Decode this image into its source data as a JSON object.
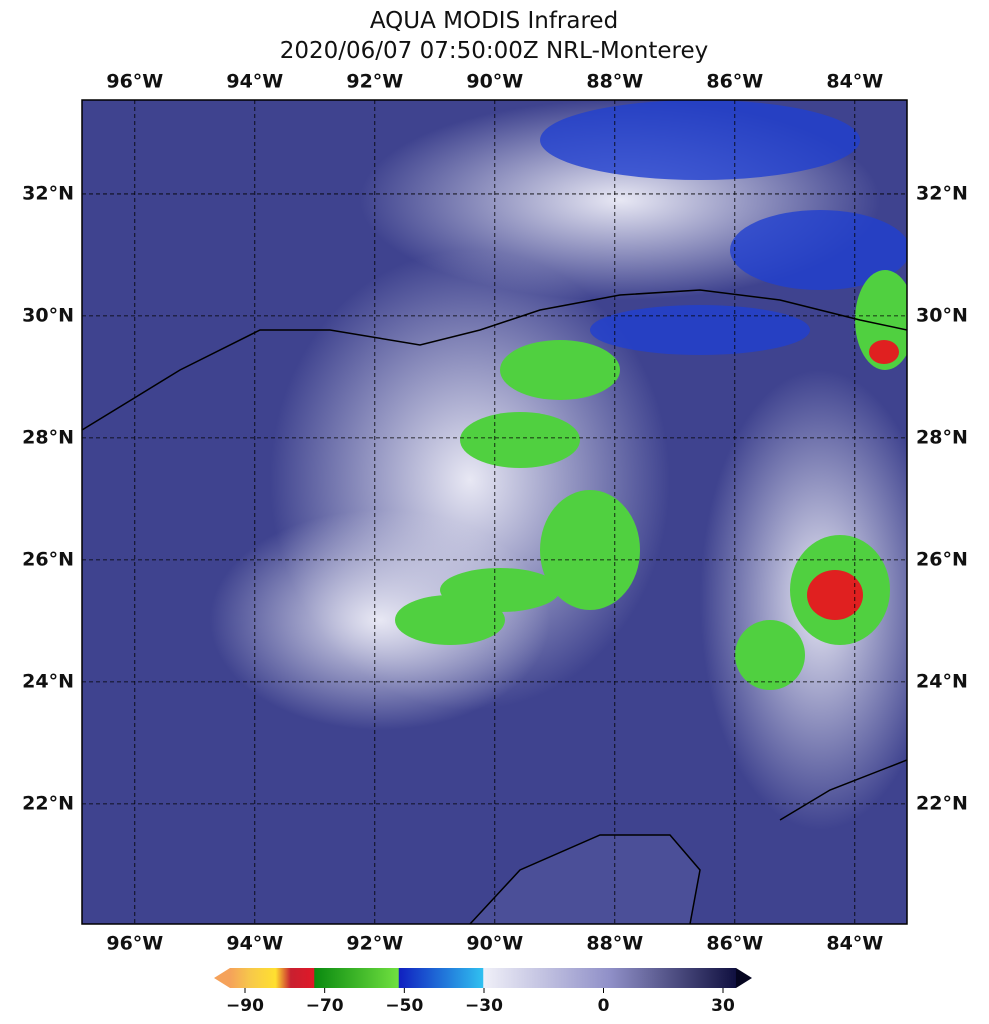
{
  "title": [
    "AQUA MODIS Infrared",
    "2020/06/07 07:50:00Z NRL-Monterey"
  ],
  "map": {
    "xlim": [
      -96.88,
      -83.13
    ],
    "ylim": [
      20.03,
      33.54
    ],
    "grid": true,
    "xticks": [
      {
        "value": -96,
        "label": "96°W"
      },
      {
        "value": -94,
        "label": "94°W"
      },
      {
        "value": -92,
        "label": "92°W"
      },
      {
        "value": -90,
        "label": "90°W"
      },
      {
        "value": -88,
        "label": "88°W"
      },
      {
        "value": -86,
        "label": "86°W"
      },
      {
        "value": -84,
        "label": "84°W"
      }
    ],
    "yticks": [
      {
        "value": 22,
        "label": "22°N"
      },
      {
        "value": 24,
        "label": "24°N"
      },
      {
        "value": 26,
        "label": "26°N"
      },
      {
        "value": 28,
        "label": "28°N"
      },
      {
        "value": 30,
        "label": "30°N"
      },
      {
        "value": 32,
        "label": "32°N"
      }
    ]
  },
  "colorbar": {
    "lim": [
      -90,
      30
    ],
    "ticks": [
      {
        "value": -90,
        "label": "−90"
      },
      {
        "value": -70,
        "label": "−70"
      },
      {
        "value": -50,
        "label": "−50"
      },
      {
        "value": -30,
        "label": "−30"
      },
      0,
      30
    ]
  }
}
